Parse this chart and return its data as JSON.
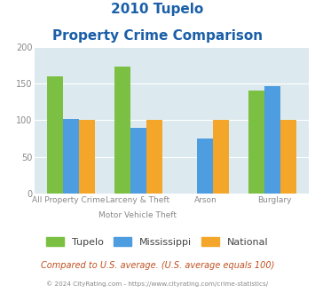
{
  "title_line1": "2010 Tupelo",
  "title_line2": "Property Crime Comparison",
  "cat_labels_line1": [
    "",
    "Larceny & Theft",
    "Arson",
    ""
  ],
  "cat_labels_line2": [
    "All Property Crime",
    "Motor Vehicle Theft",
    "",
    "Burglary"
  ],
  "tupelo": [
    160,
    173,
    0,
    140
  ],
  "mississippi": [
    102,
    89,
    75,
    147
  ],
  "national": [
    100,
    100,
    100,
    100
  ],
  "tupelo_color": "#7bc043",
  "mississippi_color": "#4d9de0",
  "national_color": "#f4a62a",
  "ylim": [
    0,
    200
  ],
  "yticks": [
    0,
    50,
    100,
    150,
    200
  ],
  "background_color": "#dce9ef",
  "title_color": "#1a5fa8",
  "axis_label_color": "#888888",
  "legend_label_color": "#444444",
  "footnote1": "Compared to U.S. average. (U.S. average equals 100)",
  "footnote2": "© 2024 CityRating.com - https://www.cityrating.com/crime-statistics/",
  "footnote1_color": "#c05020",
  "footnote2_color": "#888888"
}
